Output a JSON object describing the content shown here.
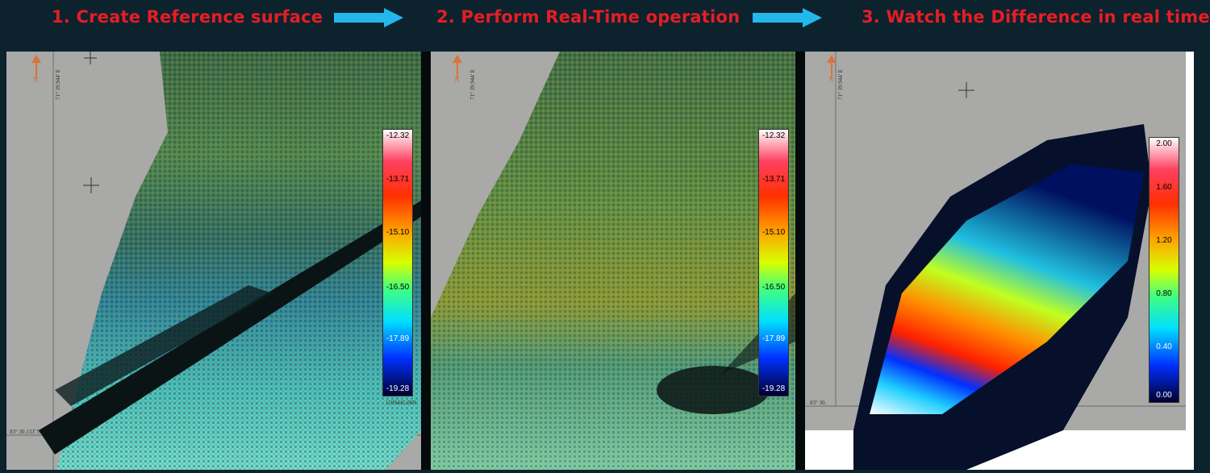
{
  "steps": [
    {
      "label": "1. Create Reference surface"
    },
    {
      "label": "2. Perform Real-Time operation"
    },
    {
      "label": "3. Watch the Difference in real time"
    }
  ],
  "colors": {
    "background": "#0c232e",
    "step_text": "#e61d25",
    "arrow": "#22b8ec",
    "map_background": "#a9a9a7"
  },
  "panels": [
    {
      "name": "reference-surface",
      "north_label": "N",
      "lat_label": "71° 39.944' E",
      "lon_label": "83° 30.133' N",
      "easting_label": "1599445.00N",
      "legend": [
        "-12.32",
        "-13.71",
        "-15.10",
        "-16.50",
        "-17.89",
        "-19.28"
      ]
    },
    {
      "name": "realtime-operation",
      "north_label": "N",
      "lat_label": "71° 39.944' E",
      "legend": [
        "-12.32",
        "-13.71",
        "-15.10",
        "-16.50",
        "-17.89",
        "-19.28"
      ]
    },
    {
      "name": "difference",
      "north_label": "N",
      "lat_label": "71° 39.944' E",
      "lon_label": "83° 30.",
      "legend": [
        "2.00",
        "1.60",
        "1.20",
        "0.80",
        "0.40",
        "0.00"
      ]
    }
  ]
}
